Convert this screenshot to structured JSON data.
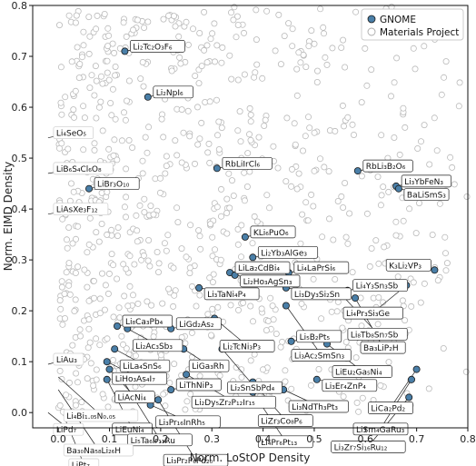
{
  "chart_data": {
    "type": "scatter",
    "xlabel": "Norm. LoStOP Density",
    "ylabel": "Norm. EIMD Density",
    "xlim": [
      -0.05,
      0.8
    ],
    "ylim": [
      -0.03,
      0.8
    ],
    "xticks": [
      "0.0",
      "0.1",
      "0.2",
      "0.3",
      "0.4",
      "0.5",
      "0.6",
      "0.7",
      "0.8"
    ],
    "yticks": [
      "0.0",
      "0.1",
      "0.2",
      "0.3",
      "0.4",
      "0.5",
      "0.6",
      "0.7",
      "0.8"
    ],
    "grid": false,
    "legend_position": "top-right",
    "colors": {
      "gnome": "#4a7fa8",
      "materials_project": "#bbbbbb"
    },
    "series": [
      {
        "name": "GNOME",
        "marker": "filled-circle"
      },
      {
        "name": "Materials Project",
        "marker": "hollow-circle"
      }
    ],
    "materials_project_sample_count": 900,
    "annotations": [
      {
        "label": "Li₂Tc₂O₃F₆",
        "x": 0.13,
        "y": 0.71,
        "gnome": true
      },
      {
        "label": "Li₂NpI₆",
        "x": 0.175,
        "y": 0.62,
        "gnome": true
      },
      {
        "label": "Li₄SeO₅",
        "x": -0.02,
        "y": 0.54,
        "gnome": false
      },
      {
        "label": "LiB₆S₄Cl₆O₈",
        "x": -0.02,
        "y": 0.47,
        "gnome": false
      },
      {
        "label": "LiBr₃O₁₀",
        "x": 0.06,
        "y": 0.44,
        "gnome": true
      },
      {
        "label": "LiAsXe₃F₁₂",
        "x": -0.02,
        "y": 0.39,
        "gnome": false
      },
      {
        "label": "RbLiIrCl₆",
        "x": 0.31,
        "y": 0.48,
        "gnome": true
      },
      {
        "label": "RbLi₃B₂O₆",
        "x": 0.585,
        "y": 0.475,
        "gnome": true
      },
      {
        "label": "Li₃YbFeN₃",
        "x": 0.66,
        "y": 0.445,
        "gnome": true
      },
      {
        "label": "BaLiSmS₃",
        "x": 0.665,
        "y": 0.44,
        "gnome": true
      },
      {
        "label": "KLi₆PuO₆",
        "x": 0.365,
        "y": 0.345,
        "gnome": true
      },
      {
        "label": "Li₂Yb₃AlGe₃",
        "x": 0.38,
        "y": 0.305,
        "gnome": true
      },
      {
        "label": "LiLa₂CdBi₄",
        "x": 0.335,
        "y": 0.275,
        "gnome": true
      },
      {
        "label": "Li₂Ho₃AgSn₃",
        "x": 0.345,
        "y": 0.27,
        "gnome": true
      },
      {
        "label": "Li₄LaPrSi₆",
        "x": 0.45,
        "y": 0.275,
        "gnome": true
      },
      {
        "label": "Li₃TaNi₄P₄",
        "x": 0.275,
        "y": 0.245,
        "gnome": true
      },
      {
        "label": "Li₃Dy₃Si₂Sn",
        "x": 0.445,
        "y": 0.245,
        "gnome": true
      },
      {
        "label": "Li₄Y₃Sn₃Sb",
        "x": 0.565,
        "y": 0.24,
        "gnome": true
      },
      {
        "label": "K₃Li₂VP₃",
        "x": 0.735,
        "y": 0.28,
        "gnome": true
      },
      {
        "label": "Li₄Pr₃Si₃Ge",
        "x": 0.68,
        "y": 0.25,
        "gnome": true
      },
      {
        "label": "Li₈Tb₈Sn₇Sb",
        "x": 0.555,
        "y": 0.23,
        "gnome": true
      },
      {
        "label": "Ba₃LiP₂H",
        "x": 0.58,
        "y": 0.225,
        "gnome": true
      },
      {
        "label": "Li₈Ca₃Pb₄",
        "x": 0.115,
        "y": 0.17,
        "gnome": true
      },
      {
        "label": "LiGd₂As₂",
        "x": 0.22,
        "y": 0.165,
        "gnome": true
      },
      {
        "label": "Li₂Ac₃Sb₃",
        "x": 0.135,
        "y": 0.165,
        "gnome": true
      },
      {
        "label": "Li₂TcNi₃P₃",
        "x": 0.305,
        "y": 0.185,
        "gnome": true
      },
      {
        "label": "Li₃Ac₂SmSn₃",
        "x": 0.445,
        "y": 0.21,
        "gnome": true
      },
      {
        "label": "LiLa₄SnS₆",
        "x": 0.11,
        "y": 0.125,
        "gnome": true
      },
      {
        "label": "LiGa₃Rh",
        "x": 0.245,
        "y": 0.125,
        "gnome": true
      },
      {
        "label": "Li₂SnSbPd₄",
        "x": 0.32,
        "y": 0.125,
        "gnome": true
      },
      {
        "label": "Li₅B₂Pt₅",
        "x": 0.455,
        "y": 0.14,
        "gnome": true
      },
      {
        "label": "LiEu₂Ga₅Ni₄",
        "x": 0.525,
        "y": 0.135,
        "gnome": true
      },
      {
        "label": "LiHo₃As₄I₇",
        "x": 0.095,
        "y": 0.1,
        "gnome": true
      },
      {
        "label": "LiAu₃",
        "x": -0.02,
        "y": 0.095,
        "gnome": false
      },
      {
        "label": "LiAcNi₄",
        "x": 0.1,
        "y": 0.085,
        "gnome": true
      },
      {
        "label": "Li₄Bi₁.₀₅N₀.₀₅",
        "x": 0.0,
        "y": 0.07,
        "gnome": false
      },
      {
        "label": "LiEuNi₄",
        "x": 0.095,
        "y": 0.065,
        "gnome": true
      },
      {
        "label": "Li₅Ta₆Ir₁₁Ru",
        "x": 0.125,
        "y": 0.065,
        "gnome": true
      },
      {
        "label": "Li₂Dy₅Zr₂P₁₂Ir₁₅",
        "x": 0.25,
        "y": 0.075,
        "gnome": true
      },
      {
        "label": "LiZr₃Co₈P₆",
        "x": 0.38,
        "y": 0.06,
        "gnome": true
      },
      {
        "label": "Li₃Er₄ZnP₄",
        "x": 0.505,
        "y": 0.065,
        "gnome": true
      },
      {
        "label": "LiCa₂Pd₂",
        "x": 0.7,
        "y": 0.085,
        "gnome": true
      },
      {
        "label": "Ba₃₀Na₅₈Li₂₆H",
        "x": 0.0,
        "y": 0.045,
        "gnome": false
      },
      {
        "label": "LiThNiP₃",
        "x": 0.22,
        "y": 0.045,
        "gnome": true
      },
      {
        "label": "Li₄Pr₆Pt₁₃",
        "x": 0.38,
        "y": 0.04,
        "gnome": true
      },
      {
        "label": "Li₃NdTh₃Pt₃",
        "x": 0.44,
        "y": 0.045,
        "gnome": true
      },
      {
        "label": "LiSm₄GaRu₃",
        "x": 0.69,
        "y": 0.065,
        "gnome": true
      },
      {
        "label": "LiPd₇",
        "x": -0.02,
        "y": 0.0,
        "gnome": false
      },
      {
        "label": "LiPt₇",
        "x": 0.01,
        "y": -0.005,
        "gnome": false
      },
      {
        "label": "Li₃Pr₁₆InRh₅",
        "x": 0.18,
        "y": 0.015,
        "gnome": true
      },
      {
        "label": "Li₃Pr₂P₆Pd₂₀",
        "x": 0.195,
        "y": 0.025,
        "gnome": true
      },
      {
        "label": "Li₃Zr₇Si₁₆Ru₁₂",
        "x": 0.685,
        "y": 0.03,
        "gnome": true
      }
    ]
  }
}
